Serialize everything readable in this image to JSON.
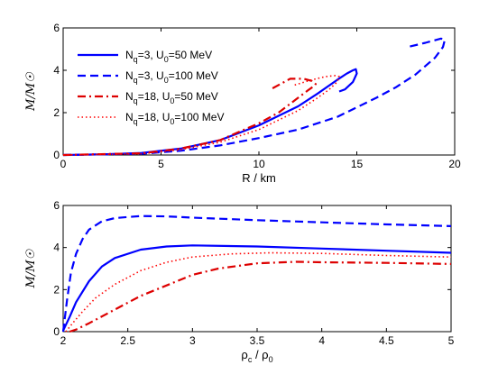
{
  "chart_data": [
    {
      "type": "line",
      "xlabel": "R / km",
      "ylabel": "M/M☉",
      "xlim": [
        0,
        20
      ],
      "ylim": [
        0,
        6
      ],
      "xticks": [
        "0",
        "5",
        "10",
        "15",
        "20"
      ],
      "yticks": [
        "0",
        "2",
        "4",
        "6"
      ],
      "legend_position": "top-left",
      "series": [
        {
          "name": "N_q=3, U_0=50 MeV",
          "color": "#0000ff",
          "style": "solid",
          "x": [
            0,
            2,
            4,
            6,
            8,
            10,
            12,
            13,
            14,
            14.5,
            14.8,
            14.95,
            15.0,
            14.8,
            14.4,
            14.1
          ],
          "y": [
            0,
            0.03,
            0.1,
            0.3,
            0.7,
            1.4,
            2.3,
            2.9,
            3.55,
            3.85,
            4.0,
            4.05,
            3.85,
            3.45,
            3.1,
            3.0
          ]
        },
        {
          "name": "N_q=3, U_0=100 MeV",
          "color": "#0000ff",
          "style": "dashed",
          "x": [
            0,
            4,
            6,
            8,
            10,
            12,
            14,
            16,
            17,
            18,
            19,
            19.4,
            19.5,
            19.3,
            18.5,
            17.6
          ],
          "y": [
            0,
            0.06,
            0.2,
            0.45,
            0.8,
            1.2,
            1.8,
            2.7,
            3.2,
            3.8,
            4.6,
            5.1,
            5.45,
            5.5,
            5.3,
            5.1
          ]
        },
        {
          "name": "N_q=18, U_0=50 MeV",
          "color": "#dd0000",
          "style": "dashdot",
          "x": [
            0,
            4,
            6,
            8,
            10,
            11,
            12,
            12.5,
            12.8,
            12.9,
            12.7,
            12.3,
            11.6,
            10.6
          ],
          "y": [
            0,
            0.08,
            0.3,
            0.7,
            1.5,
            2.0,
            2.7,
            3.05,
            3.25,
            3.35,
            3.5,
            3.6,
            3.6,
            3.1
          ]
        },
        {
          "name": "N_q=18, U_0=100 MeV",
          "color": "#ff0000",
          "style": "dotted",
          "x": [
            0,
            4,
            6,
            8,
            10,
            12,
            13,
            13.6,
            14.0,
            14.1,
            13.9,
            13.4,
            12.7,
            11.8
          ],
          "y": [
            0,
            0.06,
            0.25,
            0.6,
            1.2,
            2.1,
            2.7,
            3.1,
            3.45,
            3.7,
            3.75,
            3.7,
            3.55,
            3.3
          ]
        }
      ]
    },
    {
      "type": "line",
      "xlabel": "ρc / ρ0",
      "ylabel": "M/M☉",
      "xlim": [
        2,
        5
      ],
      "ylim": [
        0,
        6
      ],
      "xticks": [
        "2",
        "2.5",
        "3",
        "3.5",
        "4",
        "4.5",
        "5"
      ],
      "yticks": [
        "0",
        "2",
        "4",
        "6"
      ],
      "series": [
        {
          "name": "N_q=3, U_0=50 MeV",
          "color": "#0000ff",
          "style": "solid",
          "x": [
            2.0,
            2.05,
            2.1,
            2.2,
            2.3,
            2.4,
            2.6,
            2.8,
            3.0,
            3.5,
            4.0,
            4.5,
            5.0
          ],
          "y": [
            0.05,
            0.7,
            1.4,
            2.4,
            3.1,
            3.5,
            3.9,
            4.05,
            4.1,
            4.05,
            3.95,
            3.85,
            3.75
          ]
        },
        {
          "name": "N_q=3, U_0=100 MeV",
          "color": "#0000ff",
          "style": "dashed",
          "x": [
            2.0,
            2.03,
            2.06,
            2.1,
            2.15,
            2.2,
            2.3,
            2.4,
            2.6,
            2.8,
            3.0,
            3.5,
            4.0,
            4.5,
            5.0
          ],
          "y": [
            0.0,
            1.5,
            2.8,
            3.7,
            4.4,
            4.85,
            5.25,
            5.4,
            5.5,
            5.48,
            5.42,
            5.3,
            5.2,
            5.1,
            5.02
          ]
        },
        {
          "name": "N_q=18, U_0=50 MeV",
          "color": "#dd0000",
          "style": "dashdot",
          "x": [
            2.05,
            2.1,
            2.2,
            2.4,
            2.6,
            2.8,
            3.0,
            3.2,
            3.5,
            3.8,
            4.0,
            4.5,
            5.0
          ],
          "y": [
            0.0,
            0.1,
            0.4,
            1.05,
            1.7,
            2.2,
            2.7,
            3.0,
            3.25,
            3.32,
            3.3,
            3.27,
            3.22
          ]
        },
        {
          "name": "N_q=18, U_0=100 MeV",
          "color": "#ff0000",
          "style": "dotted",
          "x": [
            2.02,
            2.08,
            2.15,
            2.25,
            2.4,
            2.6,
            2.8,
            3.0,
            3.3,
            3.6,
            4.0,
            4.5,
            5.0
          ],
          "y": [
            0.0,
            0.45,
            0.95,
            1.6,
            2.25,
            2.9,
            3.3,
            3.55,
            3.7,
            3.75,
            3.72,
            3.62,
            3.55
          ]
        }
      ]
    }
  ]
}
